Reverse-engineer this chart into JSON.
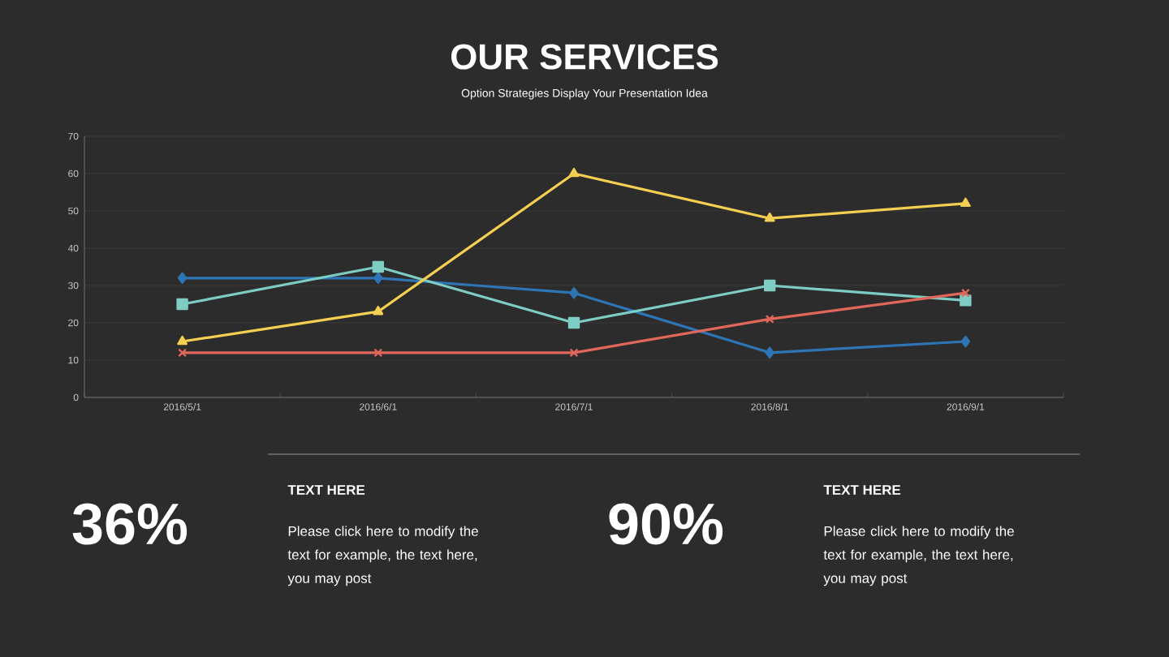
{
  "chart_data": [
    {
      "type": "line",
      "title": "OUR SERVICES",
      "subtitle": "Option Strategies Display Your Presentation Idea",
      "categories": [
        "2016/5/1",
        "2016/6/1",
        "2016/7/1",
        "2016/8/1",
        "2016/9/1"
      ],
      "ylim": [
        0,
        70
      ],
      "yticks": [
        0,
        10,
        20,
        30,
        40,
        50,
        60,
        70
      ],
      "grid": "y",
      "line_style": "solid",
      "series": [
        {
          "color": "#2e75b6",
          "marker": "diamond",
          "values": [
            32,
            32,
            28,
            12,
            15
          ]
        },
        {
          "color": "#7ecdc4",
          "marker": "square",
          "values": [
            25,
            35,
            20,
            30,
            26
          ]
        },
        {
          "color": "#f5cf52",
          "marker": "triangle",
          "values": [
            15,
            23,
            60,
            48,
            52
          ]
        },
        {
          "color": "#e0675a",
          "marker": "cross",
          "values": [
            12,
            12,
            12,
            21,
            28
          ]
        }
      ]
    },
    {
      "type": "other",
      "annotations": [
        "36%",
        "TEXT HERE",
        "Please click here to modify the text for example, the text here, you may post",
        "90%",
        "TEXT HERE",
        "Please click here to modify the text for example, the text here, you may post"
      ]
    }
  ]
}
